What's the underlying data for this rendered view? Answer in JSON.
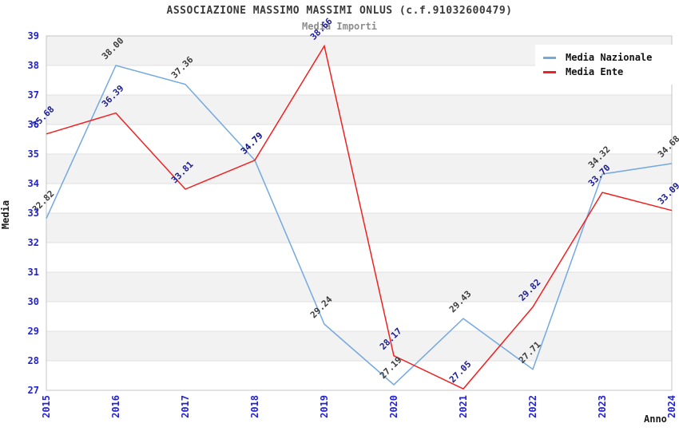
{
  "header": {
    "title": "ASSOCIAZIONE MASSIMO MASSIMI ONLUS (c.f.91032600479)",
    "subtitle": "Media Importi"
  },
  "chart_data": {
    "type": "line",
    "title": "ASSOCIAZIONE MASSIMO MASSIMI ONLUS (c.f.91032600479)",
    "subtitle": "Media Importi",
    "xlabel": "Anno",
    "ylabel": "Media",
    "categories": [
      "2015",
      "2016",
      "2017",
      "2018",
      "2019",
      "2020",
      "2021",
      "2022",
      "2023",
      "2024"
    ],
    "series": [
      {
        "name": "Media Nazionale",
        "color": "#74a9df",
        "label_color": "#3c3c3c",
        "values": [
          32.82,
          38.0,
          37.36,
          34.79,
          29.24,
          27.19,
          29.43,
          27.71,
          34.32,
          34.68
        ]
      },
      {
        "name": "Media Ente",
        "color": "#ee2222",
        "label_color": "#1c1c8e",
        "values": [
          35.68,
          36.39,
          33.81,
          34.79,
          38.66,
          28.17,
          27.05,
          29.82,
          33.7,
          33.09
        ]
      }
    ],
    "ylim": [
      27,
      39
    ],
    "ytick_step": 1,
    "grid": true,
    "legend_position": "top-right",
    "style": {
      "tick_color": "#2323cf",
      "band_gray": "#f2f2f2",
      "band_white": "#ffffff",
      "grid_color": "#e0e0e0",
      "border_color": "#c4c4c4"
    }
  }
}
